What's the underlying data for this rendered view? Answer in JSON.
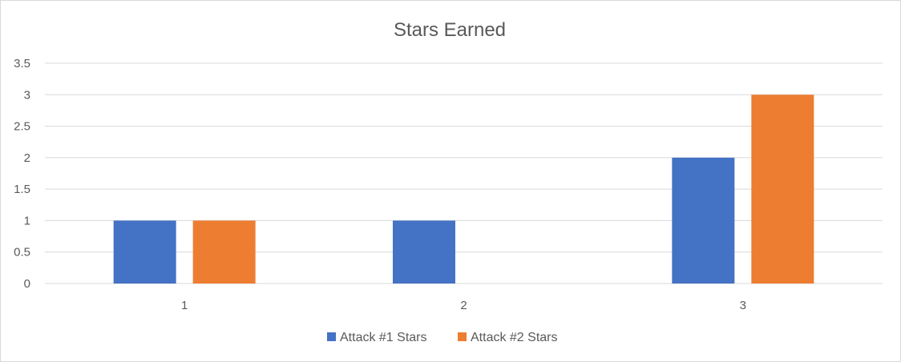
{
  "chart_data": {
    "type": "bar",
    "title": "Stars Earned",
    "categories": [
      "1",
      "2",
      "3"
    ],
    "series": [
      {
        "name": "Attack #1 Stars",
        "values": [
          1,
          1,
          2
        ],
        "color": "#4472C4"
      },
      {
        "name": "Attack #2 Stars",
        "values": [
          1,
          0,
          3
        ],
        "color": "#ED7D31"
      }
    ],
    "y_ticks": [
      "0",
      "0.5",
      "1",
      "1.5",
      "2",
      "2.5",
      "3",
      "3.5"
    ],
    "ylim": [
      0,
      3.5
    ],
    "grid": true,
    "legend_position": "bottom",
    "xlabel": "",
    "ylabel": ""
  }
}
